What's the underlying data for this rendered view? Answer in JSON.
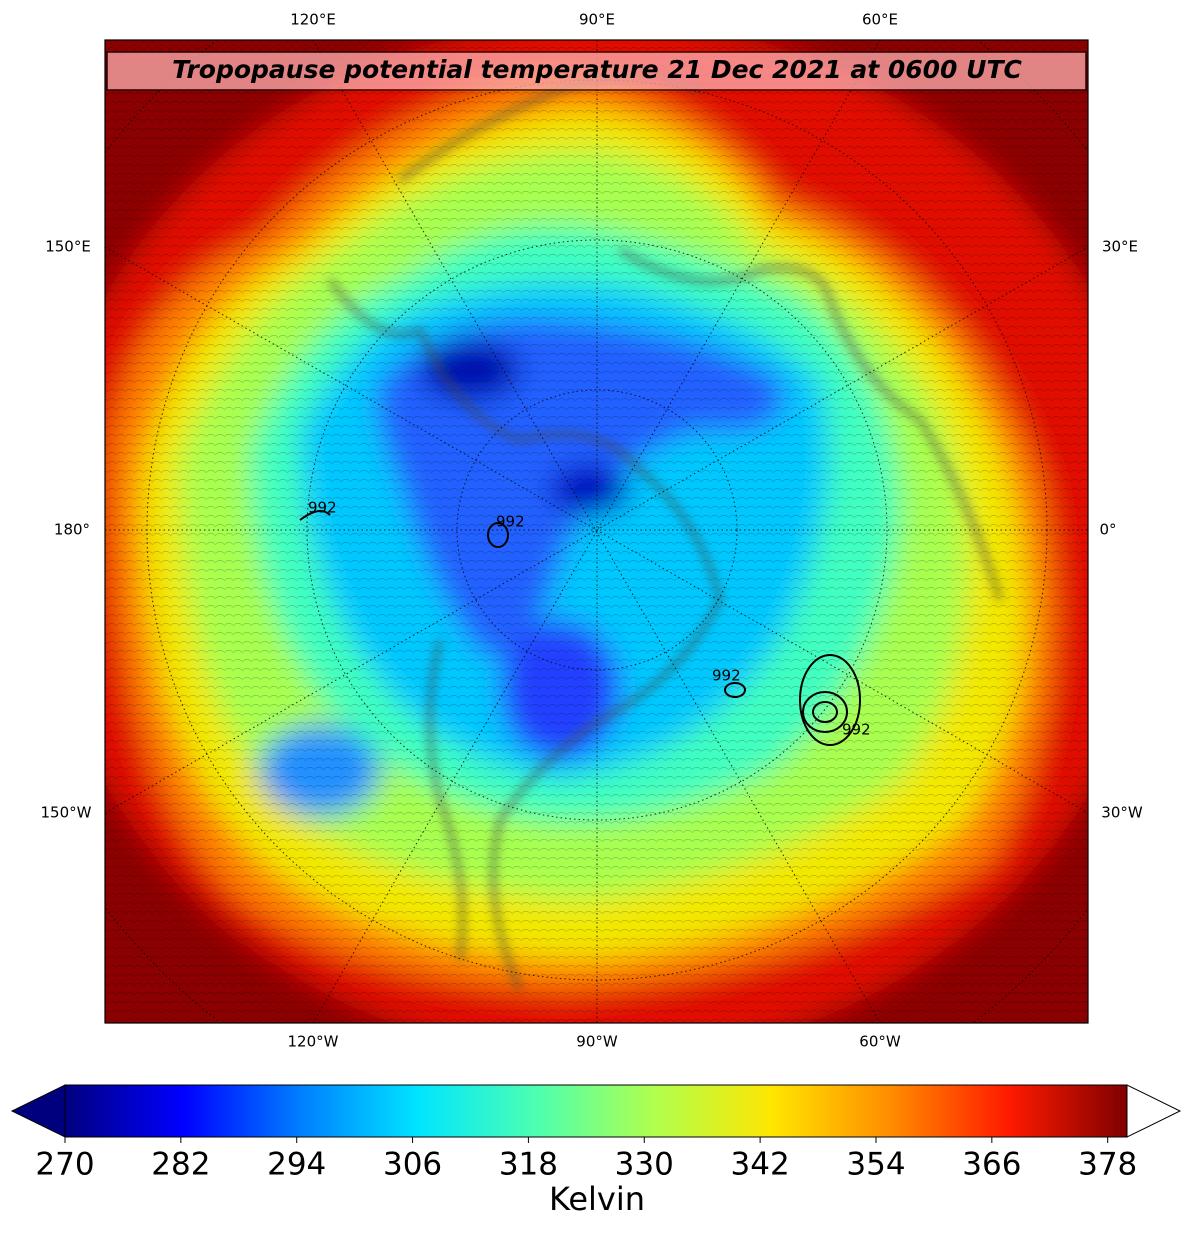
{
  "chart_data": {
    "type": "map",
    "title": "Tropopause potential temperature 21 Dec 2021 at 0600 UTC",
    "top_labels": [
      "120°E",
      "90°E",
      "60°E"
    ],
    "bottom_labels": [
      "120°W",
      "90°W",
      "60°W"
    ],
    "left_labels": [
      "150°E",
      "180°",
      "150°W"
    ],
    "right_labels": [
      "30°E",
      "0°",
      "30°W"
    ],
    "contour_labels": [
      "992",
      "992",
      "992",
      "992"
    ],
    "colorbar": {
      "label": "Kelvin",
      "lim": [
        270,
        380
      ],
      "ticks": [
        270,
        282,
        294,
        306,
        318,
        330,
        342,
        354,
        366,
        378
      ],
      "colors": [
        "#00007f",
        "#0000ff",
        "#007fff",
        "#00e5ff",
        "#4dffb0",
        "#b0ff4d",
        "#ffe500",
        "#ff8c00",
        "#ff1a00",
        "#7f0000"
      ],
      "under_color": "#00007f",
      "over_color": "#ffffff"
    }
  }
}
